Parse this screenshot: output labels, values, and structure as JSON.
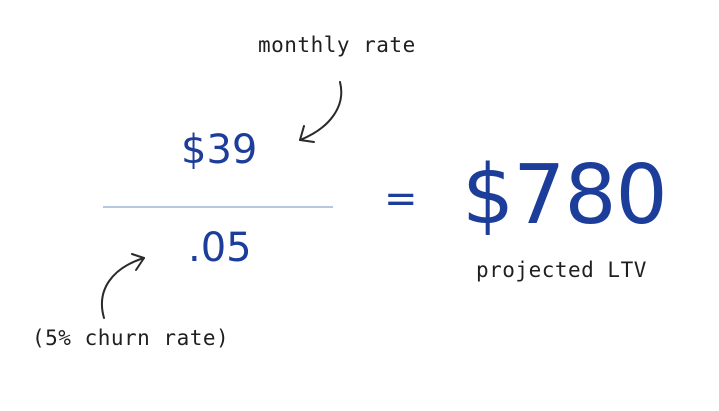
{
  "formula": {
    "numerator": "$39",
    "denominator": ".05",
    "equals": "=",
    "result": "$780"
  },
  "annotations": {
    "monthly_rate": "monthly rate",
    "churn_rate": "(5% churn rate)",
    "projected_ltv": "projected LTV"
  },
  "colors": {
    "number_blue": "#1d3d9a",
    "fraction_line": "#b9c6e2",
    "annotation_ink": "#1f1f1f"
  }
}
